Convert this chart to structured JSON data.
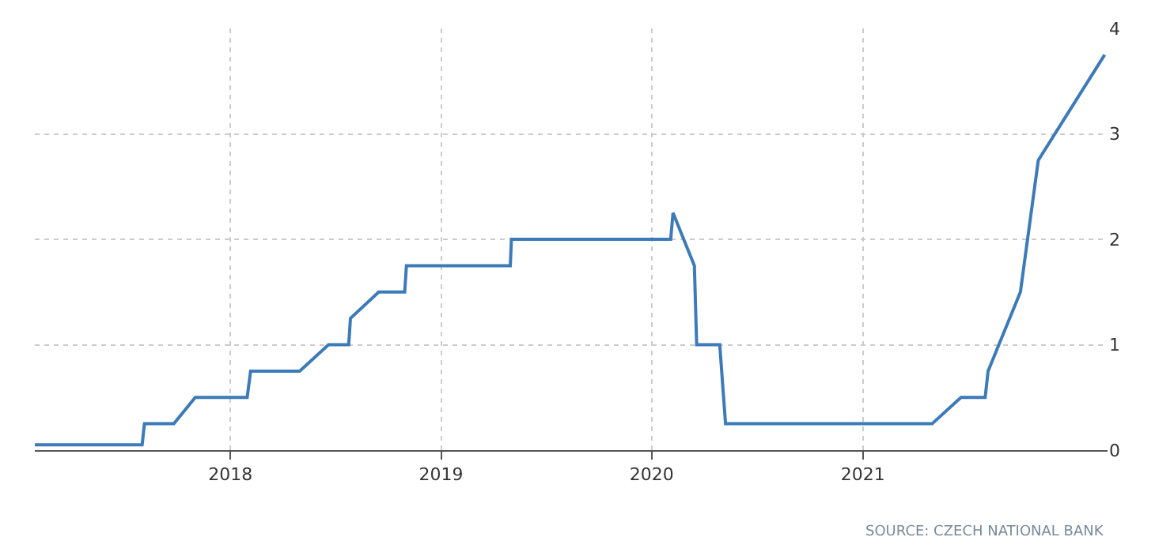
{
  "chart_data": {
    "type": "line",
    "x": [
      "2017-01-27",
      "2017-08-01",
      "2017-08-05",
      "2017-09-25",
      "2017-11-01",
      "2018-01-30",
      "2018-02-05",
      "2018-05-01",
      "2018-06-20",
      "2018-07-25",
      "2018-07-28",
      "2018-09-15",
      "2018-10-30",
      "2018-11-02",
      "2019-05-01",
      "2019-05-03",
      "2020-02-03",
      "2020-02-07",
      "2020-03-15",
      "2020-03-19",
      "2020-04-28",
      "2020-05-08",
      "2021-05-01",
      "2021-06-20",
      "2021-08-01",
      "2021-08-06",
      "2021-10-01",
      "2021-11-01",
      "2022-02-24"
    ],
    "series": [
      {
        "color": "#3d7ab8",
        "values": [
          0.05,
          0.05,
          0.25,
          0.25,
          0.5,
          0.5,
          0.75,
          0.75,
          1.0,
          1.0,
          1.25,
          1.5,
          1.5,
          1.75,
          1.75,
          2.0,
          2.0,
          2.25,
          1.75,
          1.0,
          1.0,
          0.25,
          0.25,
          0.5,
          0.5,
          0.75,
          1.5,
          2.75,
          3.75
        ]
      }
    ],
    "xlim": [
      "2017-01-27",
      "2022-03-01"
    ],
    "xticks": [
      "2018",
      "2019",
      "2020",
      "2021"
    ],
    "ylim": [
      0,
      4
    ],
    "yticks": [
      0,
      1,
      2,
      3,
      4
    ],
    "grid": true,
    "legend": false,
    "marker": "none",
    "line_style": "solid",
    "annotations": [
      "SOURCE: CZECH NATIONAL BANK"
    ]
  }
}
